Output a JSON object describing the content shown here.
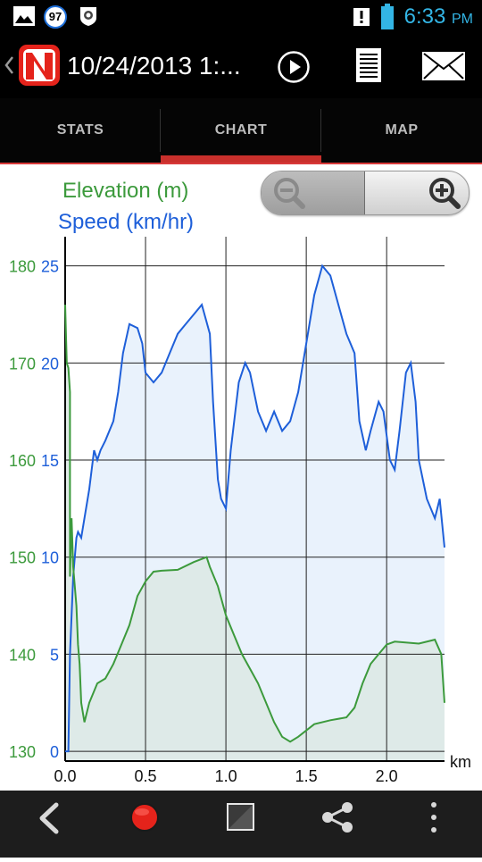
{
  "status_bar": {
    "notification_count": "97",
    "time": "6:33",
    "ampm": "PM"
  },
  "action_bar": {
    "title": "10/24/2013 1:...",
    "icons": [
      "back-chevron-icon",
      "app-logo-icon",
      "play-icon",
      "notes-icon",
      "mail-icon"
    ]
  },
  "tabs": [
    {
      "label": "STATS"
    },
    {
      "label": "CHART"
    },
    {
      "label": "MAP"
    }
  ],
  "legend": {
    "elevation": "Elevation (m)",
    "speed": "Speed (km/hr)"
  },
  "colors": {
    "elevation": "#3c9a3c",
    "speed": "#1e5fd9",
    "tab_indicator": "#c9302c"
  },
  "chart_data": {
    "type": "area",
    "x_unit": "km",
    "x_ticks": [
      "0.0",
      "0.5",
      "1.0",
      "1.5",
      "2.0"
    ],
    "x_range": [
      0,
      2.36
    ],
    "y_left_ticks": [
      "130",
      "140",
      "150",
      "160",
      "170",
      "180"
    ],
    "y_left_range": [
      129,
      183
    ],
    "y_speed_ticks": [
      "0",
      "5",
      "10",
      "15",
      "20",
      "25"
    ],
    "y_speed_range": [
      -0.5,
      26.5
    ],
    "grid": true,
    "series": [
      {
        "name": "Elevation (m)",
        "axis": "left",
        "points": [
          [
            0.0,
            176
          ],
          [
            0.01,
            170
          ],
          [
            0.02,
            169.5
          ],
          [
            0.03,
            167
          ],
          [
            0.03,
            148
          ],
          [
            0.04,
            154
          ],
          [
            0.05,
            149
          ],
          [
            0.06,
            147
          ],
          [
            0.07,
            145
          ],
          [
            0.08,
            141
          ],
          [
            0.09,
            139
          ],
          [
            0.1,
            135
          ],
          [
            0.12,
            133
          ],
          [
            0.15,
            135
          ],
          [
            0.2,
            137
          ],
          [
            0.25,
            137.5
          ],
          [
            0.3,
            139
          ],
          [
            0.35,
            141
          ],
          [
            0.4,
            143
          ],
          [
            0.45,
            146
          ],
          [
            0.5,
            147.5
          ],
          [
            0.55,
            148.5
          ],
          [
            0.6,
            148.6
          ],
          [
            0.7,
            148.7
          ],
          [
            0.8,
            149.5
          ],
          [
            0.88,
            150
          ],
          [
            0.9,
            149
          ],
          [
            0.95,
            147
          ],
          [
            1.0,
            144
          ],
          [
            1.05,
            142
          ],
          [
            1.1,
            140
          ],
          [
            1.2,
            137
          ],
          [
            1.3,
            133
          ],
          [
            1.35,
            131.5
          ],
          [
            1.4,
            131
          ],
          [
            1.45,
            131.5
          ],
          [
            1.55,
            132.8
          ],
          [
            1.65,
            133.2
          ],
          [
            1.75,
            133.5
          ],
          [
            1.8,
            134.5
          ],
          [
            1.85,
            137
          ],
          [
            1.9,
            139
          ],
          [
            1.95,
            140
          ],
          [
            2.0,
            141
          ],
          [
            2.05,
            141.3
          ],
          [
            2.2,
            141.1
          ],
          [
            2.3,
            141.5
          ],
          [
            2.34,
            140
          ],
          [
            2.36,
            135
          ]
        ]
      },
      {
        "name": "Speed (km/hr)",
        "axis": "right",
        "points": [
          [
            0.0,
            0
          ],
          [
            0.02,
            0
          ],
          [
            0.03,
            5
          ],
          [
            0.05,
            9
          ],
          [
            0.07,
            11
          ],
          [
            0.08,
            11.3
          ],
          [
            0.1,
            11
          ],
          [
            0.12,
            12
          ],
          [
            0.15,
            13.5
          ],
          [
            0.18,
            15.5
          ],
          [
            0.2,
            15
          ],
          [
            0.22,
            15.5
          ],
          [
            0.25,
            16
          ],
          [
            0.3,
            17
          ],
          [
            0.33,
            18.5
          ],
          [
            0.36,
            20.5
          ],
          [
            0.4,
            22
          ],
          [
            0.45,
            21.8
          ],
          [
            0.48,
            21
          ],
          [
            0.5,
            19.5
          ],
          [
            0.55,
            19
          ],
          [
            0.6,
            19.5
          ],
          [
            0.65,
            20.5
          ],
          [
            0.7,
            21.5
          ],
          [
            0.75,
            22
          ],
          [
            0.8,
            22.5
          ],
          [
            0.85,
            23
          ],
          [
            0.9,
            21.5
          ],
          [
            0.92,
            18
          ],
          [
            0.95,
            14
          ],
          [
            0.97,
            13
          ],
          [
            1.0,
            12.5
          ],
          [
            1.03,
            15.5
          ],
          [
            1.08,
            19
          ],
          [
            1.12,
            20
          ],
          [
            1.15,
            19.5
          ],
          [
            1.2,
            17.5
          ],
          [
            1.25,
            16.5
          ],
          [
            1.3,
            17.5
          ],
          [
            1.35,
            16.5
          ],
          [
            1.4,
            17
          ],
          [
            1.45,
            18.5
          ],
          [
            1.5,
            21
          ],
          [
            1.55,
            23.5
          ],
          [
            1.6,
            25
          ],
          [
            1.65,
            24.5
          ],
          [
            1.7,
            23
          ],
          [
            1.75,
            21.5
          ],
          [
            1.8,
            20.5
          ],
          [
            1.83,
            17
          ],
          [
            1.87,
            15.5
          ],
          [
            1.9,
            16.5
          ],
          [
            1.95,
            18
          ],
          [
            1.98,
            17.5
          ],
          [
            2.02,
            15
          ],
          [
            2.05,
            14.5
          ],
          [
            2.08,
            16.5
          ],
          [
            2.12,
            19.5
          ],
          [
            2.15,
            20
          ],
          [
            2.18,
            18
          ],
          [
            2.2,
            15
          ],
          [
            2.25,
            13
          ],
          [
            2.3,
            12
          ],
          [
            2.33,
            13
          ],
          [
            2.36,
            10.5
          ]
        ]
      }
    ]
  },
  "nav_bar": {
    "icons": [
      "back-arrow-icon",
      "record-icon",
      "stop-icon",
      "share-icon",
      "overflow-menu-icon"
    ]
  }
}
